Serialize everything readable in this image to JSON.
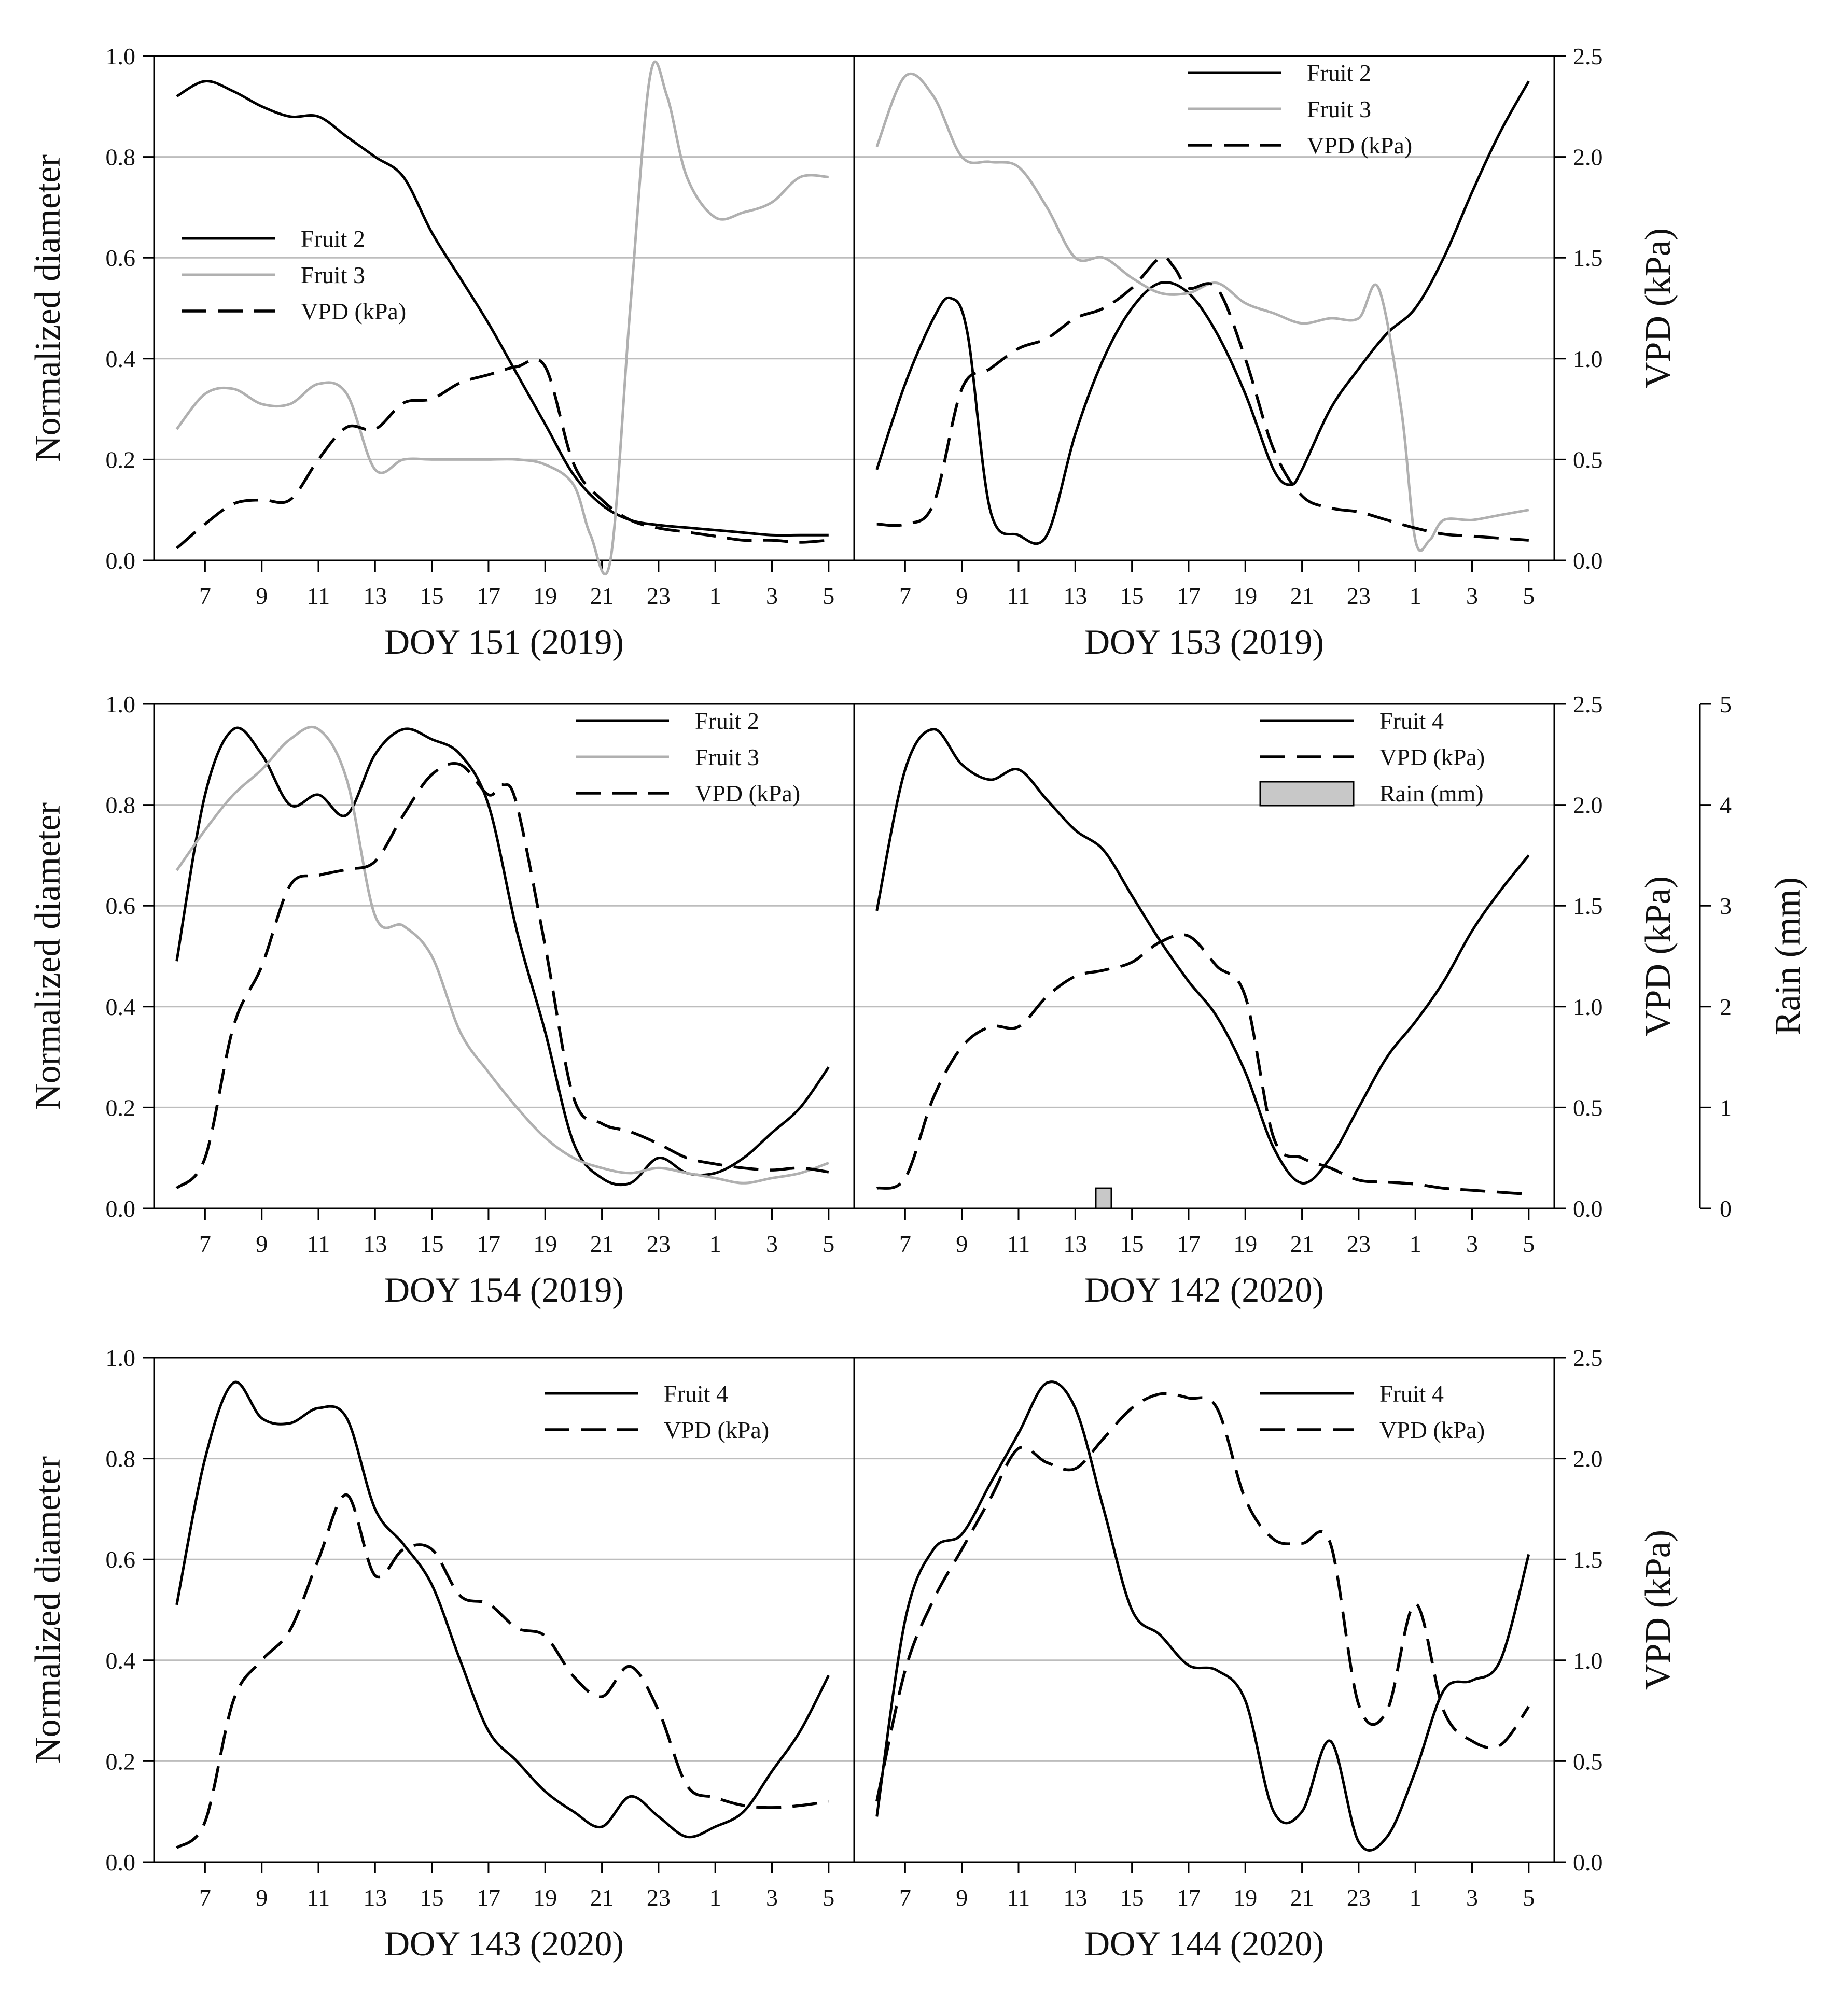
{
  "colors": {
    "fruit2": "#000000",
    "fruit3": "#b0b0b0",
    "fruit4": "#000000",
    "vpd": "#000000",
    "rain_fill": "#c8c8c8",
    "grid": "#bdbdbd",
    "axis": "#000000"
  },
  "chart_data": {
    "type": "line",
    "x_ticks": [
      "7",
      "9",
      "11",
      "13",
      "15",
      "17",
      "19",
      "21",
      "23",
      "1",
      "3",
      "5"
    ],
    "x_tick_hours": [
      7,
      9,
      11,
      13,
      15,
      17,
      19,
      21,
      23,
      25,
      27,
      29
    ],
    "xlim": [
      5.2,
      29.9
    ],
    "left_axis": {
      "label": "Normalized diameter",
      "ylim": [
        0.0,
        1.0
      ],
      "ticks": [
        "0.0",
        "0.2",
        "0.4",
        "0.6",
        "0.8",
        "1.0"
      ]
    },
    "right_axis": {
      "label": "VPD (kPa)",
      "ylim": [
        0.0,
        2.5
      ],
      "ticks": [
        "0.0",
        "0.5",
        "1.0",
        "1.5",
        "2.0",
        "2.5"
      ]
    },
    "rain_axis": {
      "label": "Rain (mm)",
      "ylim": [
        0,
        5
      ],
      "ticks": [
        "0",
        "1",
        "2",
        "3",
        "4",
        "5"
      ]
    },
    "panels": [
      {
        "title": "DOY 151 (2019)",
        "legend": [
          "Fruit 2",
          "Fruit 3",
          "VPD (kPa)"
        ],
        "series": [
          {
            "name": "Fruit 2",
            "kind": "fruit2",
            "x": [
              6,
              7,
              8,
              9,
              10,
              11,
              12,
              13,
              14,
              15,
              16,
              17,
              18,
              19,
              20,
              21,
              22,
              23,
              24,
              25,
              26,
              27,
              28,
              29
            ],
            "y": [
              0.92,
              0.95,
              0.93,
              0.9,
              0.88,
              0.88,
              0.84,
              0.8,
              0.76,
              0.65,
              0.56,
              0.47,
              0.37,
              0.27,
              0.17,
              0.11,
              0.08,
              0.07,
              0.065,
              0.06,
              0.055,
              0.05,
              0.05,
              0.05
            ]
          },
          {
            "name": "Fruit 3",
            "kind": "fruit3",
            "x": [
              6,
              7,
              8,
              9,
              10,
              11,
              12,
              13,
              14,
              15,
              16,
              17,
              18,
              19,
              20,
              20.6,
              21.3,
              22,
              22.7,
              23.3,
              24,
              25,
              26,
              27,
              28,
              29
            ],
            "y": [
              0.26,
              0.33,
              0.34,
              0.31,
              0.31,
              0.35,
              0.33,
              0.18,
              0.2,
              0.2,
              0.2,
              0.2,
              0.2,
              0.19,
              0.15,
              0.05,
              0.0,
              0.5,
              0.96,
              0.92,
              0.76,
              0.68,
              0.69,
              0.71,
              0.76,
              0.76
            ]
          },
          {
            "name": "VPD (kPa)",
            "kind": "vpd",
            "x": [
              6,
              7,
              8,
              9,
              10,
              11,
              12,
              13,
              14,
              15,
              16,
              17,
              18,
              19,
              20,
              21,
              22,
              23,
              24,
              25,
              26,
              27,
              28,
              29
            ],
            "y": [
              0.06,
              0.18,
              0.28,
              0.3,
              0.3,
              0.5,
              0.66,
              0.65,
              0.78,
              0.8,
              0.88,
              0.92,
              0.96,
              0.96,
              0.48,
              0.3,
              0.2,
              0.16,
              0.14,
              0.12,
              0.1,
              0.1,
              0.09,
              0.1
            ]
          }
        ]
      },
      {
        "title": "DOY 153 (2019)",
        "legend": [
          "Fruit 2",
          "Fruit 3",
          "VPD (kPa)"
        ],
        "series": [
          {
            "name": "Fruit 2",
            "kind": "fruit2",
            "x": [
              6,
              7,
              8,
              8.6,
              9.2,
              10,
              11,
              12,
              13,
              14,
              15,
              16,
              17,
              18,
              19,
              20,
              20.6,
              21,
              22,
              23,
              24,
              25,
              26,
              27,
              28,
              29
            ],
            "y": [
              0.18,
              0.35,
              0.48,
              0.52,
              0.45,
              0.1,
              0.05,
              0.05,
              0.25,
              0.4,
              0.5,
              0.55,
              0.53,
              0.45,
              0.33,
              0.18,
              0.15,
              0.18,
              0.3,
              0.38,
              0.45,
              0.5,
              0.6,
              0.73,
              0.85,
              0.95
            ]
          },
          {
            "name": "Fruit 3",
            "kind": "fruit3",
            "x": [
              6,
              7,
              8,
              9,
              10,
              11,
              12,
              13,
              14,
              15,
              16,
              17,
              18,
              19,
              20,
              21,
              22,
              23,
              23.7,
              24.5,
              25,
              25.5,
              26,
              27,
              28,
              29
            ],
            "y": [
              0.82,
              0.96,
              0.92,
              0.8,
              0.79,
              0.78,
              0.7,
              0.6,
              0.6,
              0.56,
              0.53,
              0.53,
              0.55,
              0.51,
              0.49,
              0.47,
              0.48,
              0.48,
              0.54,
              0.3,
              0.04,
              0.04,
              0.08,
              0.08,
              0.09,
              0.1
            ]
          },
          {
            "name": "VPD (kPa)",
            "kind": "vpd",
            "x": [
              6,
              7,
              8,
              9,
              10,
              11,
              12,
              13,
              14,
              15,
              16,
              16.5,
              17,
              18,
              19,
              20,
              21,
              22,
              23,
              24,
              25,
              26,
              27,
              28,
              29
            ],
            "y": [
              0.18,
              0.18,
              0.28,
              0.85,
              0.95,
              1.05,
              1.1,
              1.2,
              1.25,
              1.35,
              1.5,
              1.45,
              1.35,
              1.35,
              1.0,
              0.55,
              0.32,
              0.26,
              0.24,
              0.2,
              0.16,
              0.13,
              0.12,
              0.11,
              0.1
            ]
          }
        ]
      },
      {
        "title": "DOY 154 (2019)",
        "legend": [
          "Fruit 2",
          "Fruit 3",
          "VPD (kPa)"
        ],
        "series": [
          {
            "name": "Fruit 2",
            "kind": "fruit2",
            "x": [
              6,
              7,
              8,
              9,
              10,
              11,
              12,
              13,
              14,
              15,
              16,
              17,
              18,
              19,
              20,
              21,
              22,
              23,
              24,
              25,
              26,
              27,
              28,
              29
            ],
            "y": [
              0.49,
              0.82,
              0.95,
              0.9,
              0.8,
              0.82,
              0.78,
              0.9,
              0.95,
              0.93,
              0.9,
              0.8,
              0.55,
              0.35,
              0.13,
              0.06,
              0.05,
              0.1,
              0.07,
              0.07,
              0.1,
              0.15,
              0.2,
              0.28
            ]
          },
          {
            "name": "Fruit 3",
            "kind": "fruit3",
            "x": [
              6,
              7,
              8,
              9,
              10,
              11,
              12,
              13,
              14,
              15,
              16,
              17,
              18,
              19,
              20,
              21,
              22,
              23,
              24,
              25,
              26,
              27,
              28,
              29
            ],
            "y": [
              0.67,
              0.75,
              0.82,
              0.87,
              0.93,
              0.95,
              0.85,
              0.58,
              0.56,
              0.5,
              0.35,
              0.27,
              0.2,
              0.14,
              0.1,
              0.08,
              0.07,
              0.08,
              0.07,
              0.06,
              0.05,
              0.06,
              0.07,
              0.09
            ]
          },
          {
            "name": "VPD (kPa)",
            "kind": "vpd",
            "x": [
              6,
              7,
              8,
              9,
              10,
              11,
              12,
              13,
              14,
              15,
              16,
              17,
              17.5,
              18,
              19,
              20,
              21,
              22,
              23,
              24,
              25,
              26,
              27,
              28,
              29
            ],
            "y": [
              0.1,
              0.25,
              0.9,
              1.2,
              1.6,
              1.65,
              1.68,
              1.72,
              1.95,
              2.15,
              2.2,
              2.05,
              2.1,
              2.0,
              1.3,
              0.55,
              0.42,
              0.38,
              0.32,
              0.25,
              0.22,
              0.2,
              0.19,
              0.2,
              0.18
            ]
          }
        ]
      },
      {
        "title": "DOY 142 (2020)",
        "legend": [
          "Fruit 4",
          "VPD (kPa)",
          "Rain (mm)"
        ],
        "rain": {
          "hour": 14,
          "value_mm": 0.2
        },
        "series": [
          {
            "name": "Fruit 4",
            "kind": "fruit4",
            "x": [
              6,
              7,
              8,
              9,
              10,
              11,
              12,
              13,
              14,
              15,
              16,
              17,
              18,
              19,
              20,
              21,
              22,
              23,
              24,
              25,
              26,
              27,
              28,
              29
            ],
            "y": [
              0.59,
              0.87,
              0.95,
              0.88,
              0.85,
              0.87,
              0.81,
              0.75,
              0.71,
              0.62,
              0.53,
              0.45,
              0.38,
              0.27,
              0.12,
              0.05,
              0.1,
              0.2,
              0.3,
              0.37,
              0.45,
              0.55,
              0.63,
              0.7
            ]
          },
          {
            "name": "VPD (kPa)",
            "kind": "vpd",
            "x": [
              6,
              7,
              8,
              9,
              10,
              11,
              12,
              13,
              14,
              15,
              16,
              17,
              18,
              19,
              20,
              21,
              22,
              23,
              24,
              25,
              26,
              27,
              28,
              29
            ],
            "y": [
              0.1,
              0.15,
              0.55,
              0.8,
              0.9,
              0.9,
              1.05,
              1.15,
              1.18,
              1.22,
              1.32,
              1.35,
              1.2,
              1.05,
              0.35,
              0.25,
              0.2,
              0.14,
              0.13,
              0.12,
              0.1,
              0.09,
              0.08,
              0.07
            ]
          }
        ]
      },
      {
        "title": "DOY 143 (2020)",
        "legend": [
          "Fruit 4",
          "VPD (kPa)"
        ],
        "series": [
          {
            "name": "Fruit 4",
            "kind": "fruit4",
            "x": [
              6,
              7,
              8,
              9,
              10,
              11,
              12,
              13,
              14,
              15,
              16,
              17,
              18,
              19,
              20,
              21,
              22,
              23,
              24,
              25,
              26,
              27,
              28,
              29
            ],
            "y": [
              0.51,
              0.8,
              0.95,
              0.88,
              0.87,
              0.9,
              0.88,
              0.7,
              0.63,
              0.55,
              0.4,
              0.26,
              0.2,
              0.14,
              0.1,
              0.07,
              0.13,
              0.09,
              0.05,
              0.07,
              0.1,
              0.18,
              0.26,
              0.37
            ]
          },
          {
            "name": "VPD (kPa)",
            "kind": "vpd",
            "x": [
              6,
              7,
              8,
              9,
              10,
              11,
              12,
              13,
              14,
              15,
              16,
              17,
              18,
              19,
              20,
              21,
              22,
              23,
              24,
              25,
              26,
              27,
              28,
              29
            ],
            "y": [
              0.07,
              0.2,
              0.8,
              1.0,
              1.15,
              1.5,
              1.82,
              1.42,
              1.55,
              1.55,
              1.32,
              1.28,
              1.16,
              1.12,
              0.92,
              0.82,
              0.97,
              0.75,
              0.38,
              0.32,
              0.28,
              0.27,
              0.28,
              0.3
            ]
          }
        ]
      },
      {
        "title": "DOY 144 (2020)",
        "legend": [
          "Fruit 4",
          "VPD (kPa)"
        ],
        "series": [
          {
            "name": "Fruit 4",
            "kind": "fruit4",
            "x": [
              6,
              7,
              8,
              9,
              10,
              11,
              12,
              13,
              14,
              15,
              16,
              17,
              18,
              19,
              20,
              21,
              22,
              23,
              24,
              25,
              26,
              27,
              28,
              29
            ],
            "y": [
              0.09,
              0.48,
              0.62,
              0.65,
              0.75,
              0.85,
              0.95,
              0.9,
              0.7,
              0.5,
              0.45,
              0.39,
              0.38,
              0.32,
              0.1,
              0.1,
              0.24,
              0.04,
              0.05,
              0.18,
              0.34,
              0.36,
              0.4,
              0.61
            ]
          },
          {
            "name": "VPD (kPa)",
            "kind": "vpd",
            "x": [
              6,
              7,
              8,
              9,
              10,
              11,
              12,
              13,
              14,
              15,
              16,
              17,
              18,
              19,
              20,
              21,
              22,
              23,
              24,
              25,
              26,
              27,
              28,
              29
            ],
            "y": [
              0.3,
              0.95,
              1.3,
              1.55,
              1.8,
              2.05,
              1.98,
              1.95,
              2.1,
              2.25,
              2.32,
              2.3,
              2.25,
              1.8,
              1.6,
              1.58,
              1.58,
              0.78,
              0.75,
              1.28,
              0.75,
              0.6,
              0.58,
              0.77
            ]
          }
        ]
      }
    ]
  }
}
